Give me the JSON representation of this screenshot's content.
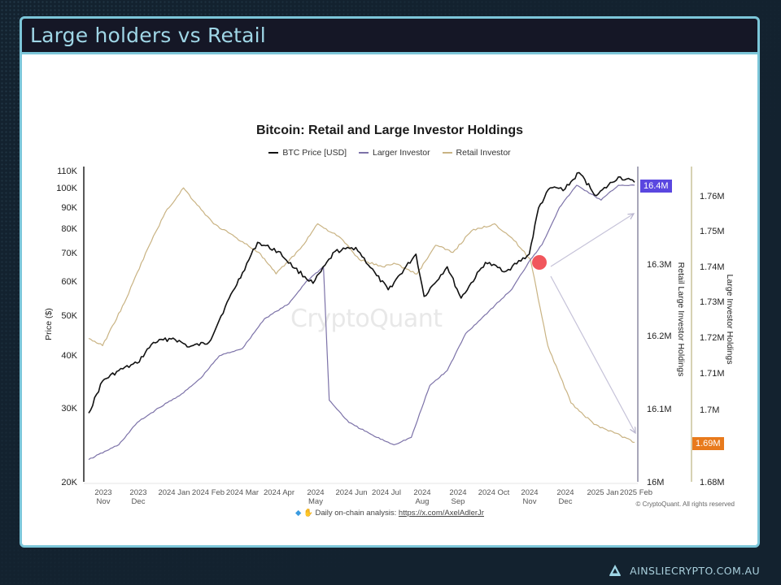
{
  "slide": {
    "title": "Large holders vs Retail",
    "brand_text": "AINSLIECRYPTO.COM.AU",
    "brand_icon": "ainslie-a-logo-icon"
  },
  "colors": {
    "background": "#13222f",
    "frame_border": "#7cc6d9",
    "title_bar": "#151726",
    "title_text": "#9fd6e6",
    "btc_price": "#111111",
    "larger_investor": "#7c72a8",
    "retail_investor": "#c9b383",
    "highlight_dot": "#f0444a",
    "badge_larger": "#5a47e0",
    "badge_retail": "#e87a1c"
  },
  "chart_data": {
    "type": "line",
    "title": "Bitcoin: Retail and Large Investor Holdings",
    "legend": [
      "BTC Price [USD]",
      "Larger Investor",
      "Retail Investor"
    ],
    "legend_position": "top",
    "grid": false,
    "watermark": "CryptoQuant",
    "x_ticks": [
      {
        "l1": "2023",
        "l2": "Nov"
      },
      {
        "l1": "2023",
        "l2": "Dec"
      },
      {
        "l1": "2024 Jan",
        "l2": ""
      },
      {
        "l1": "2024 Feb",
        "l2": ""
      },
      {
        "l1": "2024 Mar",
        "l2": ""
      },
      {
        "l1": "2024 Apr",
        "l2": ""
      },
      {
        "l1": "2024",
        "l2": "May"
      },
      {
        "l1": "2024 Jun",
        "l2": ""
      },
      {
        "l1": "2024 Jul",
        "l2": ""
      },
      {
        "l1": "2024",
        "l2": "Aug"
      },
      {
        "l1": "2024",
        "l2": "Sep"
      },
      {
        "l1": "2024 Oct",
        "l2": ""
      },
      {
        "l1": "2024",
        "l2": "Nov"
      },
      {
        "l1": "2024",
        "l2": "Dec"
      },
      {
        "l1": "2025 Jan",
        "l2": ""
      },
      {
        "l1": "2025 Feb",
        "l2": ""
      }
    ],
    "axes": {
      "left": {
        "label": "Price ($)",
        "scale": "log",
        "ylim": [
          20000,
          110000
        ],
        "ticks": [
          "110K",
          "100K",
          "90K",
          "80K",
          "70K",
          "60K",
          "50K",
          "40K",
          "30K",
          "20K"
        ]
      },
      "right1": {
        "label": "Retail Large Investor Holdings",
        "ylim": [
          16000000,
          16400000
        ],
        "ticks": [
          "16.3M",
          "16.2M",
          "16.1M",
          "16M"
        ],
        "current_badge": "16.4M"
      },
      "right2": {
        "label": "Large Investor Holdings",
        "ylim": [
          1680000,
          1765000
        ],
        "ticks": [
          "1.76M",
          "1.75M",
          "1.74M",
          "1.73M",
          "1.72M",
          "1.71M",
          "1.7M",
          "1.68M"
        ],
        "current_badge": "1.69M"
      }
    },
    "series": [
      {
        "name": "BTC Price [USD]",
        "axis": "left",
        "x": [
          "2023-10-20",
          "2023-11-01",
          "2023-11-15",
          "2023-12-01",
          "2023-12-15",
          "2024-01-01",
          "2024-01-15",
          "2024-02-01",
          "2024-02-15",
          "2024-03-01",
          "2024-03-14",
          "2024-04-01",
          "2024-04-15",
          "2024-05-01",
          "2024-05-20",
          "2024-06-07",
          "2024-06-25",
          "2024-07-05",
          "2024-07-29",
          "2024-08-05",
          "2024-08-25",
          "2024-09-06",
          "2024-09-27",
          "2024-10-15",
          "2024-11-04",
          "2024-11-12",
          "2024-11-22",
          "2024-12-05",
          "2024-12-17",
          "2025-01-01",
          "2025-01-20",
          "2025-02-03"
        ],
        "values": [
          29000,
          34500,
          36500,
          38000,
          42500,
          43500,
          41500,
          42500,
          51500,
          62000,
          73000,
          69500,
          63500,
          58500,
          69500,
          71000,
          61000,
          56500,
          68500,
          54500,
          64000,
          54000,
          65500,
          62500,
          68500,
          88000,
          98000,
          97500,
          106500,
          94000,
          104000,
          101000
        ]
      },
      {
        "name": "Larger Investor",
        "axis": "right1",
        "x": [
          "2023-10-20",
          "2023-11-15",
          "2023-12-01",
          "2023-12-20",
          "2024-01-10",
          "2024-01-25",
          "2024-02-10",
          "2024-03-01",
          "2024-03-20",
          "2024-04-10",
          "2024-04-25",
          "2024-05-10",
          "2024-05-15",
          "2024-06-01",
          "2024-06-25",
          "2024-07-10",
          "2024-07-25",
          "2024-08-10",
          "2024-08-25",
          "2024-09-10",
          "2024-09-30",
          "2024-10-20",
          "2024-11-05",
          "2024-11-15",
          "2024-11-30",
          "2024-12-15",
          "2025-01-05",
          "2025-01-20",
          "2025-02-03"
        ],
        "values": [
          16030000,
          16050000,
          16080000,
          16100000,
          16120000,
          16140000,
          16170000,
          16180000,
          16220000,
          16240000,
          16270000,
          16290000,
          16110000,
          16080000,
          16060000,
          16050000,
          16060000,
          16130000,
          16150000,
          16200000,
          16230000,
          16260000,
          16300000,
          16320000,
          16370000,
          16400000,
          16380000,
          16400000,
          16400000
        ]
      },
      {
        "name": "Retail Investor",
        "axis": "right2",
        "x": [
          "2023-10-20",
          "2023-11-01",
          "2023-11-20",
          "2023-12-10",
          "2023-12-25",
          "2024-01-10",
          "2024-01-20",
          "2024-02-05",
          "2024-02-25",
          "2024-03-15",
          "2024-03-30",
          "2024-04-20",
          "2024-05-05",
          "2024-05-25",
          "2024-06-10",
          "2024-06-30",
          "2024-07-10",
          "2024-07-30",
          "2024-08-15",
          "2024-08-30",
          "2024-09-15",
          "2024-10-05",
          "2024-10-20",
          "2024-11-05",
          "2024-11-20",
          "2024-12-10",
          "2024-12-30",
          "2025-01-15",
          "2025-02-03"
        ],
        "values": [
          1720000,
          1718000,
          1730000,
          1745000,
          1755000,
          1762000,
          1758000,
          1752000,
          1748000,
          1744000,
          1738000,
          1745000,
          1752000,
          1748000,
          1742000,
          1740000,
          1741000,
          1738000,
          1746000,
          1744000,
          1750000,
          1752000,
          1748000,
          1742000,
          1718000,
          1702000,
          1696000,
          1694000,
          1691000
        ]
      }
    ],
    "annotations": [
      {
        "type": "circle",
        "label": "crossover point",
        "x": "2024-11-05",
        "color": "#f0444a"
      },
      {
        "type": "arrow",
        "direction": "up",
        "from": "2024-11-05",
        "to": "2025-02-03",
        "target_series": "Larger Investor"
      },
      {
        "type": "arrow",
        "direction": "down",
        "from": "2024-11-05",
        "to": "2025-02-03",
        "target_series": "Retail Investor"
      }
    ],
    "footer_note": "Daily on-chain analysis:",
    "footer_link": "https://x.com/AxelAdlerJr",
    "copyright": "© CryptoQuant. All rights reserved"
  }
}
